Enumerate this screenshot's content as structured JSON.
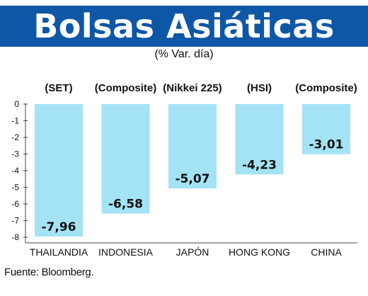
{
  "title": "Bolsas Asiáticas",
  "subtitle": "(% Var. día)",
  "source": "Fuente: Bloomberg.",
  "colors": {
    "title_band": "#0d57a6",
    "bar": "#a3e3f5",
    "axis": "#444444"
  },
  "chart_data": {
    "type": "bar",
    "categories": [
      "THAILANDIA",
      "INDONESIA",
      "JAPÓN",
      "HONG KONG",
      "CHINA"
    ],
    "index_labels": [
      "(SET)",
      "(Composite)",
      "(Nikkei 225)",
      "(HSI)",
      "(Composite)"
    ],
    "values": [
      -7.96,
      -6.58,
      -5.07,
      -4.23,
      -3.01
    ],
    "value_labels": [
      "-7,96",
      "-6,58",
      "-5,07",
      "-4,23",
      "-3,01"
    ],
    "yticks": [
      "0",
      "-1",
      "-2",
      "-3",
      "-4",
      "-5",
      "-6",
      "-7",
      "-8"
    ],
    "ylim": [
      -8,
      0
    ],
    "grid": false,
    "legend": "none"
  }
}
